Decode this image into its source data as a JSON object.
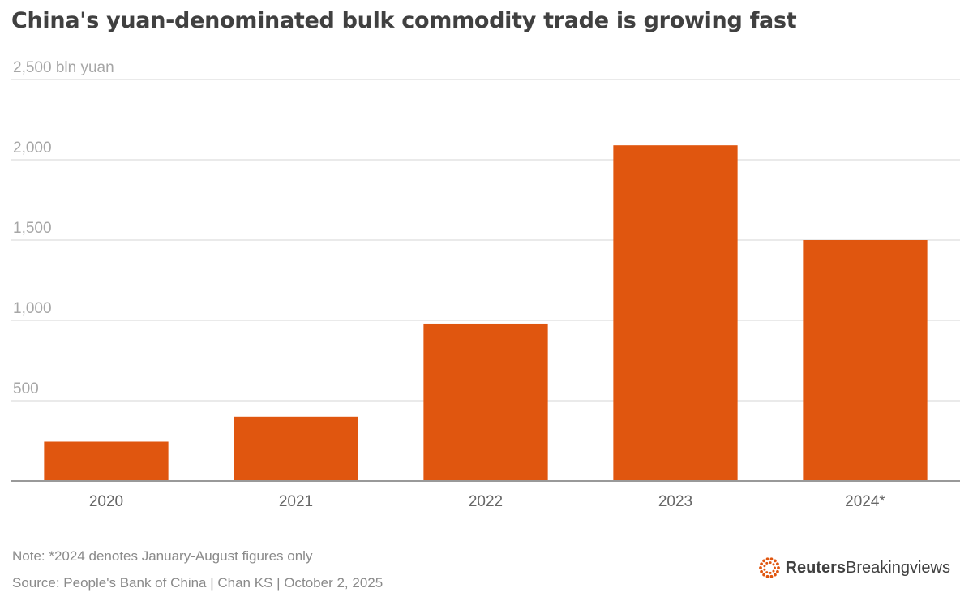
{
  "title": "China's yuan-denominated bulk commodity trade is growing fast",
  "note": "Note: *2024 denotes January-August figures only",
  "source": "Source: People's Bank of China | Chan KS | October 2, 2025",
  "brand": {
    "name_bold": "Reuters",
    "name_regular": "Breakingviews",
    "icon": "reuters-dots-logo"
  },
  "colors": {
    "bar": "#e0560f",
    "grid": "#e3e3e3",
    "axis": "#999999",
    "title": "#404040",
    "muted_text": "#8a8a8a"
  },
  "chart_data": {
    "type": "bar",
    "title": "China's yuan-denominated bulk commodity trade is growing fast",
    "xlabel": "",
    "ylabel": "",
    "unit_label": "2,500 bln yuan",
    "categories": [
      "2020",
      "2021",
      "2022",
      "2023",
      "2024*"
    ],
    "values": [
      245,
      400,
      980,
      2090,
      1500
    ],
    "ylim": [
      0,
      2500
    ],
    "yticks": [
      {
        "value": 500,
        "label": "500"
      },
      {
        "value": 1000,
        "label": "1,000"
      },
      {
        "value": 1500,
        "label": "1,500"
      },
      {
        "value": 2000,
        "label": "2,000"
      },
      {
        "value": 2500,
        "label": "2,500 bln yuan"
      }
    ],
    "grid": true,
    "legend": "none"
  }
}
